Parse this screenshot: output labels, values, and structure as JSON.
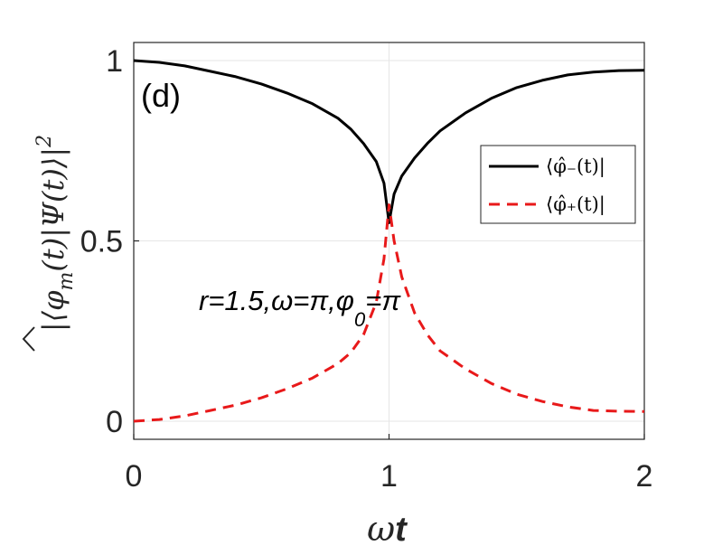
{
  "chart_data": {
    "type": "line",
    "panel_label": "(d)",
    "xlabel": "ωt",
    "ylabel": "|⟨φ̂_m(t)|Ψ(t)⟩|²",
    "annotation": "r=1.5,ω=π,φ_0=π",
    "xlim": [
      0,
      2
    ],
    "ylim": [
      -0.05,
      1.05
    ],
    "xticks": [
      "0",
      "1",
      "2"
    ],
    "yticks": [
      "0",
      "0.5",
      "1"
    ],
    "grid": true,
    "legend_position": "right",
    "x": [
      0,
      0.1,
      0.2,
      0.3,
      0.4,
      0.5,
      0.6,
      0.7,
      0.8,
      0.85,
      0.9,
      0.95,
      0.98,
      1.0,
      1.02,
      1.05,
      1.1,
      1.15,
      1.2,
      1.3,
      1.4,
      1.5,
      1.6,
      1.7,
      1.8,
      1.9,
      2.0
    ],
    "series": [
      {
        "name": "⟨φ̂₋(t)|",
        "color": "#000000",
        "dash": "solid",
        "values": [
          1.0,
          0.995,
          0.985,
          0.97,
          0.955,
          0.935,
          0.91,
          0.88,
          0.84,
          0.81,
          0.77,
          0.72,
          0.66,
          0.55,
          0.63,
          0.68,
          0.73,
          0.77,
          0.805,
          0.855,
          0.895,
          0.925,
          0.945,
          0.96,
          0.968,
          0.972,
          0.973
        ]
      },
      {
        "name": "⟨φ̂₊(t)|",
        "color": "#e8191a",
        "dash": "dashed",
        "values": [
          0.0,
          0.005,
          0.015,
          0.03,
          0.045,
          0.065,
          0.09,
          0.12,
          0.16,
          0.19,
          0.24,
          0.33,
          0.45,
          0.6,
          0.5,
          0.4,
          0.3,
          0.24,
          0.195,
          0.145,
          0.105,
          0.075,
          0.055,
          0.04,
          0.03,
          0.028,
          0.027
        ]
      }
    ]
  }
}
